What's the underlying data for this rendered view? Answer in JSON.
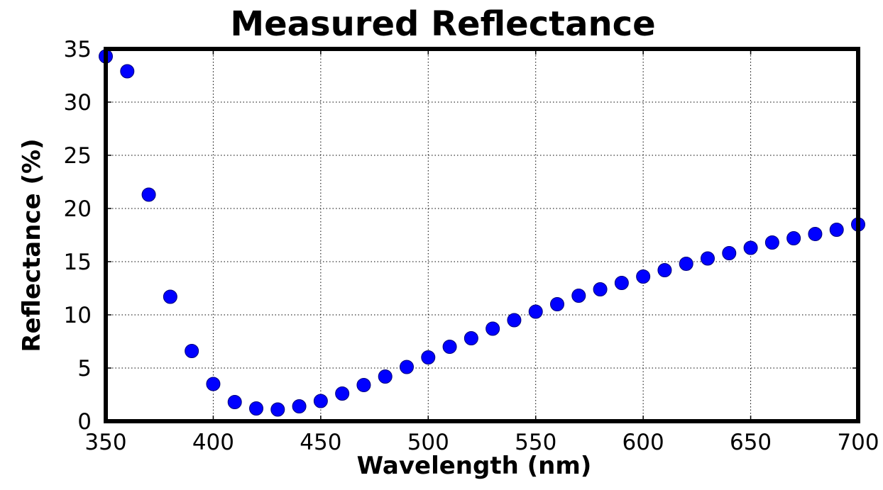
{
  "chart_data": {
    "type": "scatter",
    "title": "Measured Reflectance",
    "xlabel": "Wavelength (nm)",
    "ylabel": "Reflectance (%)",
    "xlim": [
      350,
      700
    ],
    "ylim": [
      0,
      35
    ],
    "xticks": [
      350,
      400,
      450,
      500,
      550,
      600,
      650,
      700
    ],
    "yticks": [
      0,
      5,
      10,
      15,
      20,
      25,
      30,
      35
    ],
    "grid": true,
    "marker_color": "#0000ff",
    "series": [
      {
        "name": "Reflectance",
        "x": [
          350,
          360,
          370,
          380,
          390,
          400,
          410,
          420,
          430,
          440,
          450,
          460,
          470,
          480,
          490,
          500,
          510,
          520,
          530,
          540,
          550,
          560,
          570,
          580,
          590,
          600,
          610,
          620,
          630,
          640,
          650,
          660,
          670,
          680,
          690,
          700
        ],
        "y": [
          34.3,
          32.9,
          21.3,
          11.7,
          6.6,
          3.5,
          1.8,
          1.2,
          1.1,
          1.4,
          1.9,
          2.6,
          3.4,
          4.2,
          5.1,
          6.0,
          7.0,
          7.8,
          8.7,
          9.5,
          10.3,
          11.0,
          11.8,
          12.4,
          13.0,
          13.6,
          14.2,
          14.8,
          15.3,
          15.8,
          16.3,
          16.8,
          17.2,
          17.6,
          18.0,
          18.5
        ]
      }
    ]
  }
}
